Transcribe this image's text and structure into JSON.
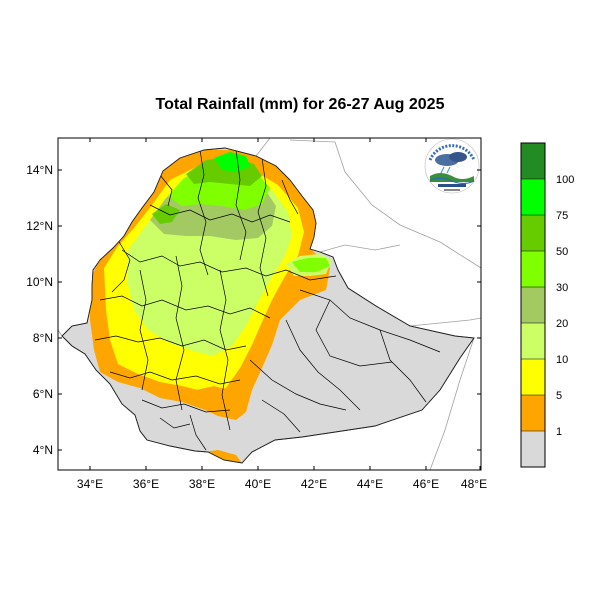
{
  "title": "Total Rainfall (mm) for 26-27 Aug 2025",
  "axes": {
    "x_ticks": [
      "34°E",
      "36°E",
      "38°E",
      "40°E",
      "42°E",
      "44°E",
      "46°E",
      "48°E"
    ],
    "y_ticks": [
      "14°N",
      "12°N",
      "10°N",
      "8°N",
      "6°N",
      "4°N"
    ]
  },
  "colorbar": {
    "labels": [
      "1",
      "5",
      "10",
      "20",
      "30",
      "50",
      "75",
      "100"
    ],
    "colors": [
      "#d9d9d9",
      "#ffa500",
      "#ffff00",
      "#ccff66",
      "#a3c962",
      "#7fff00",
      "#66cc00",
      "#00ff00",
      "#228b22"
    ]
  },
  "colors": {
    "land_no_rain": "#d9d9d9",
    "border": "#000000",
    "outside_border": "#a0a0a0"
  },
  "logo_icon": "meteorology-agency-logo-icon"
}
